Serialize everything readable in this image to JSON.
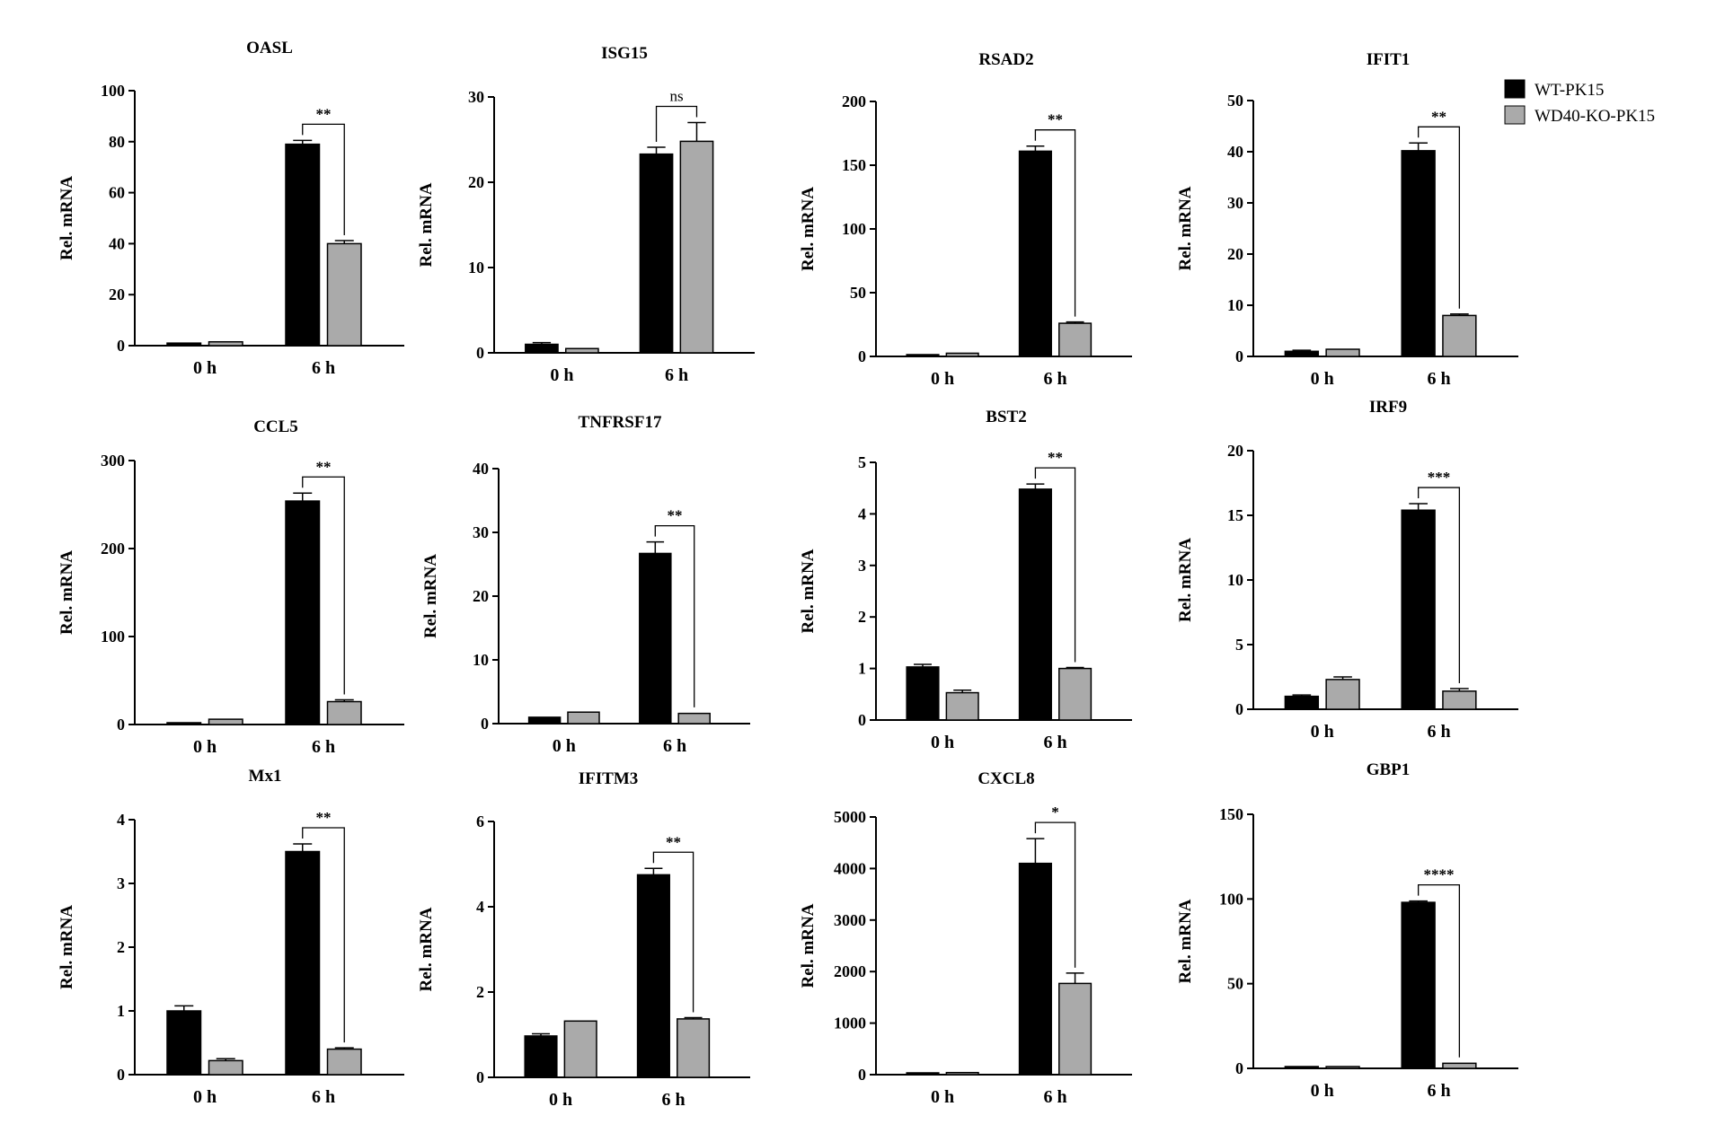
{
  "legend": [
    {
      "label": "WT-PK15",
      "color": "#000000"
    },
    {
      "label": "WD40-KO-PK15",
      "color": "#aaaaaa"
    }
  ],
  "chart_data": [
    {
      "type": "bar",
      "title": "OASL",
      "ylabel": "Rel. mRNA",
      "categories": [
        "0 h",
        "6 h"
      ],
      "ylim": [
        0,
        100
      ],
      "yticks": [
        0,
        20,
        40,
        60,
        80,
        100
      ],
      "series": [
        {
          "name": "WT-PK15",
          "values": [
            1,
            79
          ],
          "errors": [
            0.3,
            1.5
          ]
        },
        {
          "name": "WD40-KO-PK15",
          "values": [
            1.5,
            40
          ],
          "errors": [
            0.3,
            1.2
          ]
        }
      ],
      "significance": "**"
    },
    {
      "type": "bar",
      "title": "ISG15",
      "ylabel": "Rel. mRNA",
      "categories": [
        "0 h",
        "6 h"
      ],
      "ylim": [
        0,
        30
      ],
      "yticks": [
        0,
        10,
        20,
        30
      ],
      "series": [
        {
          "name": "WT-PK15",
          "values": [
            1,
            23.3
          ],
          "errors": [
            0.2,
            0.8
          ]
        },
        {
          "name": "WD40-KO-PK15",
          "values": [
            0.5,
            24.8
          ],
          "errors": [
            0.1,
            2.2
          ]
        }
      ],
      "significance": "ns"
    },
    {
      "type": "bar",
      "title": "RSAD2",
      "ylabel": "Rel. mRNA",
      "categories": [
        "0 h",
        "6 h"
      ],
      "ylim": [
        0,
        200
      ],
      "yticks": [
        0,
        50,
        100,
        150,
        200
      ],
      "series": [
        {
          "name": "WT-PK15",
          "values": [
            1,
            161
          ],
          "errors": [
            0.2,
            4
          ]
        },
        {
          "name": "WD40-KO-PK15",
          "values": [
            2.5,
            26
          ],
          "errors": [
            0.3,
            1
          ]
        }
      ],
      "significance": "**"
    },
    {
      "type": "bar",
      "title": "IFIT1",
      "ylabel": "Rel. mRNA",
      "categories": [
        "0 h",
        "6 h"
      ],
      "ylim": [
        0,
        50
      ],
      "yticks": [
        0,
        10,
        20,
        30,
        40,
        50
      ],
      "series": [
        {
          "name": "WT-PK15",
          "values": [
            1,
            40.2
          ],
          "errors": [
            0.2,
            1.5
          ]
        },
        {
          "name": "WD40-KO-PK15",
          "values": [
            1.4,
            8
          ],
          "errors": [
            0.1,
            0.3
          ]
        }
      ],
      "significance": "**"
    },
    {
      "type": "bar",
      "title": "CCL5",
      "ylabel": "Rel. mRNA",
      "categories": [
        "0 h",
        "6 h"
      ],
      "ylim": [
        0,
        300
      ],
      "yticks": [
        0,
        100,
        200,
        300
      ],
      "series": [
        {
          "name": "WT-PK15",
          "values": [
            1,
            254
          ],
          "errors": [
            0.2,
            9
          ]
        },
        {
          "name": "WD40-KO-PK15",
          "values": [
            6,
            26
          ],
          "errors": [
            0.5,
            2
          ]
        }
      ],
      "significance": "**"
    },
    {
      "type": "bar",
      "title": "TNFRSF17",
      "ylabel": "Rel. mRNA",
      "categories": [
        "0 h",
        "6 h"
      ],
      "ylim": [
        0,
        40
      ],
      "yticks": [
        0,
        10,
        20,
        30,
        40
      ],
      "series": [
        {
          "name": "WT-PK15",
          "values": [
            1,
            26.7
          ],
          "errors": [
            0.1,
            1.8
          ]
        },
        {
          "name": "WD40-KO-PK15",
          "values": [
            1.8,
            1.6
          ],
          "errors": [
            0.1,
            0.1
          ]
        }
      ],
      "significance": "**"
    },
    {
      "type": "bar",
      "title": "BST2",
      "ylabel": "Rel. mRNA",
      "categories": [
        "0 h",
        "6 h"
      ],
      "ylim": [
        0,
        5
      ],
      "yticks": [
        0,
        1,
        2,
        3,
        4,
        5
      ],
      "series": [
        {
          "name": "WT-PK15",
          "values": [
            1.03,
            4.48
          ],
          "errors": [
            0.05,
            0.1
          ]
        },
        {
          "name": "WD40-KO-PK15",
          "values": [
            0.53,
            1
          ],
          "errors": [
            0.05,
            0.02
          ]
        }
      ],
      "significance": "**"
    },
    {
      "type": "bar",
      "title": "IRF9",
      "ylabel": "Rel. mRNA",
      "categories": [
        "0 h",
        "6 h"
      ],
      "ylim": [
        0,
        20
      ],
      "yticks": [
        0,
        5,
        10,
        15,
        20
      ],
      "series": [
        {
          "name": "WT-PK15",
          "values": [
            1,
            15.4
          ],
          "errors": [
            0.1,
            0.5
          ]
        },
        {
          "name": "WD40-KO-PK15",
          "values": [
            2.3,
            1.4
          ],
          "errors": [
            0.2,
            0.2
          ]
        }
      ],
      "significance": "***"
    },
    {
      "type": "bar",
      "title": "Mx1",
      "ylabel": "Rel. mRNA",
      "categories": [
        "0 h",
        "6 h"
      ],
      "ylim": [
        0,
        4
      ],
      "yticks": [
        0,
        1,
        2,
        3,
        4
      ],
      "series": [
        {
          "name": "WT-PK15",
          "values": [
            1,
            3.5
          ],
          "errors": [
            0.08,
            0.12
          ]
        },
        {
          "name": "WD40-KO-PK15",
          "values": [
            0.22,
            0.4
          ],
          "errors": [
            0.03,
            0.02
          ]
        }
      ],
      "significance": "**"
    },
    {
      "type": "bar",
      "title": "IFITM3",
      "ylabel": "Rel. mRNA",
      "categories": [
        "0 h",
        "6 h"
      ],
      "ylim": [
        0,
        6
      ],
      "yticks": [
        0,
        2,
        4,
        6
      ],
      "series": [
        {
          "name": "WT-PK15",
          "values": [
            0.97,
            4.75
          ],
          "errors": [
            0.05,
            0.15
          ]
        },
        {
          "name": "WD40-KO-PK15",
          "values": [
            1.32,
            1.37
          ],
          "errors": [
            0.02,
            0.03
          ]
        }
      ],
      "significance": "**"
    },
    {
      "type": "bar",
      "title": "CXCL8",
      "ylabel": "Rel. mRNA",
      "categories": [
        "0 h",
        "6 h"
      ],
      "ylim": [
        0,
        5000
      ],
      "yticks": [
        0,
        1000,
        2000,
        3000,
        4000,
        5000
      ],
      "series": [
        {
          "name": "WT-PK15",
          "values": [
            1,
            4100
          ],
          "errors": [
            0.5,
            480
          ]
        },
        {
          "name": "WD40-KO-PK15",
          "values": [
            40,
            1770
          ],
          "errors": [
            5,
            200
          ]
        }
      ],
      "significance": "*"
    },
    {
      "type": "bar",
      "title": "GBP1",
      "ylabel": "Rel. mRNA",
      "categories": [
        "0 h",
        "6 h"
      ],
      "ylim": [
        0,
        150
      ],
      "yticks": [
        0,
        50,
        100,
        150
      ],
      "series": [
        {
          "name": "WT-PK15",
          "values": [
            0.8,
            98
          ],
          "errors": [
            0.1,
            0.8
          ]
        },
        {
          "name": "WD40-KO-PK15",
          "values": [
            0.2,
            3
          ],
          "errors": [
            0.05,
            0.3
          ]
        }
      ],
      "significance": "****"
    }
  ]
}
